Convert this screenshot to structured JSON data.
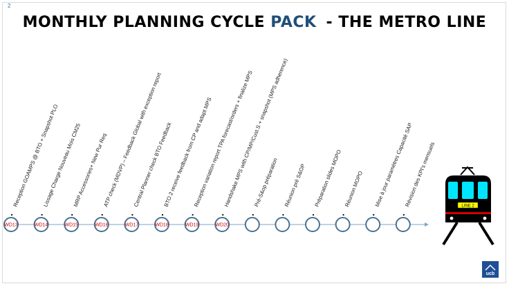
{
  "slide_number": "2",
  "title": {
    "part1": "MONTHLY PLANNING CYCLE ",
    "accent": "PACK",
    "part2": "- THE METRO LINE"
  },
  "colors": {
    "accent": "#1f4e79",
    "station_ring": "#4a7191",
    "wd_text": "#c00000",
    "train_window": "#00e5ff"
  },
  "train_sign": "LINE 2",
  "logo": "ucb",
  "stations": [
    {
      "wd": "WD13",
      "label": "Reception GOAMPS @ BTO + Snapshot  PLO"
    },
    {
      "wd": "WD14",
      "label": "Lissage Charge Nouveau Mois  CM25"
    },
    {
      "wd": "WD15",
      "label": "MRP Accessories+ New Pur Req"
    },
    {
      "wd": "WD16",
      "label": "ATP check (MDVP) – Feedback Global with exception report"
    },
    {
      "wd": "WD17",
      "label": "Central Planner check BTO Feedback"
    },
    {
      "wd": "WD18",
      "label": "BTO 2 receive feedback from CP and  adapt MPS"
    },
    {
      "wd": "WD19",
      "label": "Reception variation report TPA forecast/orders + finalize MPS"
    },
    {
      "wd": "WD20",
      "label": "Handshake MPS with CP/MP/Cust.S + snapshot (MPS adherence)"
    },
    {
      "wd": "",
      "label": "Pré-S&op préparation"
    },
    {
      "wd": "",
      "label": "Réunion pré S&OP"
    },
    {
      "wd": "",
      "label": "Préparation slides MOPO"
    },
    {
      "wd": "",
      "label": "Réunion MOPO"
    },
    {
      "wd": "",
      "label": "Mise à jour paramètres   Capacité SAP"
    },
    {
      "wd": "",
      "label": "Révision des KPI's mensuels"
    }
  ]
}
